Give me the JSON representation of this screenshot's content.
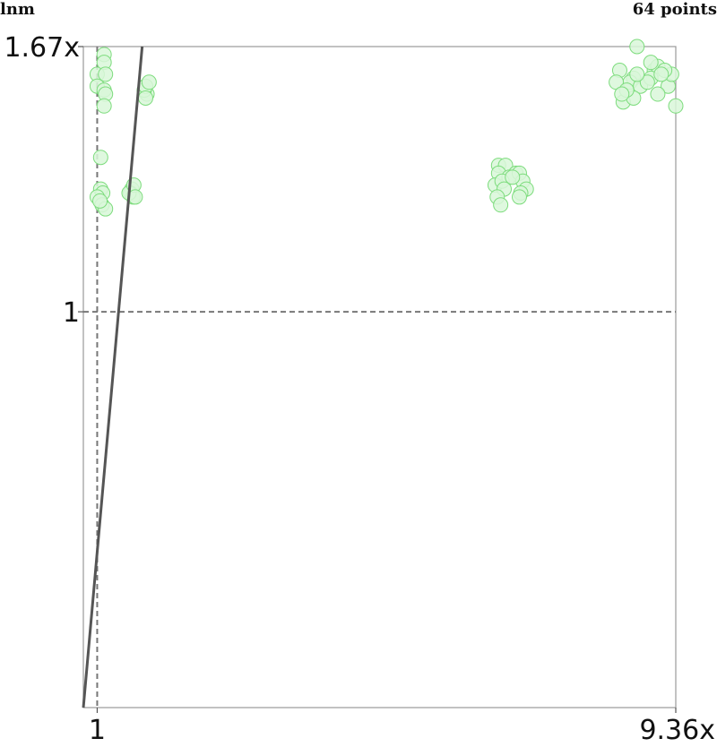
{
  "header": {
    "left_label": "lnm",
    "right_label": "64 points"
  },
  "chart_data": {
    "type": "scatter",
    "xlim": [
      0.8,
      9.36
    ],
    "ylim": [
      0.0,
      1.67
    ],
    "x_ticks": [
      {
        "value": 1,
        "label": "1"
      },
      {
        "value": 9.36,
        "label": "9.36x"
      }
    ],
    "y_ticks": [
      {
        "value": 1,
        "label": "1"
      },
      {
        "value": 1.67,
        "label": "1.67x"
      }
    ],
    "reference_lines": {
      "x": 1,
      "y": 1,
      "style": "dashed"
    },
    "diagonal_line": {
      "x": [
        0.8,
        1.65
      ],
      "y": [
        0.0,
        1.67
      ]
    },
    "marker_color": "#7ddc7d",
    "marker_fill": "#d9f7d9",
    "line_color": "#555555",
    "grid": false,
    "legend": "none",
    "series": [
      {
        "points": [
          [
            1.0,
            1.6
          ],
          [
            1.1,
            1.65
          ],
          [
            1.1,
            1.63
          ],
          [
            1.12,
            1.6
          ],
          [
            1.0,
            1.57
          ],
          [
            1.1,
            1.56
          ],
          [
            1.12,
            1.55
          ],
          [
            1.1,
            1.52
          ],
          [
            1.72,
            1.55
          ],
          [
            1.68,
            1.56
          ],
          [
            1.7,
            1.57
          ],
          [
            1.75,
            1.58
          ],
          [
            1.7,
            1.54
          ],
          [
            1.05,
            1.39
          ],
          [
            1.05,
            1.31
          ],
          [
            1.08,
            1.3
          ],
          [
            1.0,
            1.29
          ],
          [
            1.07,
            1.27
          ],
          [
            1.12,
            1.26
          ],
          [
            1.04,
            1.28
          ],
          [
            1.5,
            1.31
          ],
          [
            1.48,
            1.3
          ],
          [
            1.52,
            1.29
          ],
          [
            1.46,
            1.3
          ],
          [
            1.53,
            1.32
          ],
          [
            1.55,
            1.29
          ],
          [
            6.8,
            1.37
          ],
          [
            6.9,
            1.37
          ],
          [
            6.8,
            1.35
          ],
          [
            7.05,
            1.35
          ],
          [
            6.95,
            1.34
          ],
          [
            7.1,
            1.35
          ],
          [
            6.75,
            1.32
          ],
          [
            6.85,
            1.33
          ],
          [
            7.15,
            1.33
          ],
          [
            7.2,
            1.31
          ],
          [
            6.88,
            1.31
          ],
          [
            7.12,
            1.3
          ],
          [
            6.78,
            1.29
          ],
          [
            7.1,
            1.29
          ],
          [
            6.83,
            1.27
          ],
          [
            7.0,
            1.34
          ],
          [
            8.8,
            1.67
          ],
          [
            8.55,
            1.61
          ],
          [
            8.75,
            1.59
          ],
          [
            9.05,
            1.61
          ],
          [
            9.1,
            1.62
          ],
          [
            8.7,
            1.58
          ],
          [
            8.85,
            1.57
          ],
          [
            9.0,
            1.59
          ],
          [
            9.25,
            1.57
          ],
          [
            9.3,
            1.6
          ],
          [
            9.1,
            1.55
          ],
          [
            8.5,
            1.58
          ],
          [
            8.6,
            1.53
          ],
          [
            8.75,
            1.54
          ],
          [
            9.36,
            1.52
          ],
          [
            9.0,
            1.63
          ],
          [
            8.65,
            1.56
          ],
          [
            9.2,
            1.61
          ],
          [
            8.95,
            1.58
          ],
          [
            8.58,
            1.55
          ],
          [
            9.15,
            1.6
          ],
          [
            8.8,
            1.6
          ]
        ]
      }
    ]
  }
}
